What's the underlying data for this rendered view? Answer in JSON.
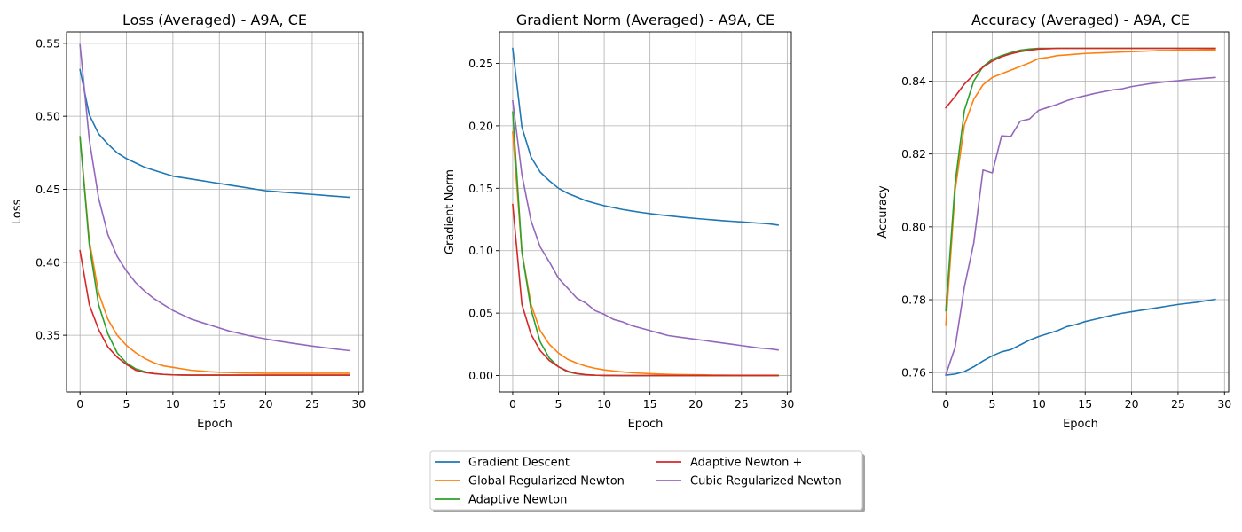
{
  "colors": {
    "Gradient Descent": "#1f77b4",
    "Global Regularized Newton": "#ff7f0e",
    "Adaptive Newton": "#2ca02c",
    "Adaptive Newton +": "#d62728",
    "Cubic Regularized Newton": "#9467bd"
  },
  "legend": {
    "placement": "bottom-center",
    "columns": 2,
    "entries": [
      "Gradient Descent",
      "Global Regularized Newton",
      "Adaptive Newton",
      "Adaptive Newton +",
      "Cubic Regularized Newton"
    ]
  },
  "chart_data": [
    {
      "id": "loss",
      "type": "line",
      "title": "Loss (Averaged) - A9A, CE",
      "xlabel": "Epoch",
      "ylabel": "Loss",
      "xlim": [
        -1.45,
        30.45
      ],
      "ylim": [
        0.3112,
        0.5578
      ],
      "xticks": [
        0,
        5,
        10,
        15,
        20,
        25,
        30
      ],
      "yticks": [
        0.35,
        0.4,
        0.45,
        0.5,
        0.55
      ],
      "ytick_labels": [
        "0.35",
        "0.40",
        "0.45",
        "0.50",
        "0.55"
      ],
      "grid": true,
      "x": [
        0,
        1,
        2,
        3,
        4,
        5,
        6,
        7,
        8,
        9,
        10,
        11,
        12,
        13,
        14,
        15,
        16,
        17,
        18,
        19,
        20,
        21,
        22,
        23,
        24,
        25,
        26,
        27,
        28,
        29
      ],
      "series": [
        {
          "name": "Gradient Descent",
          "values": [
            0.532,
            0.501,
            0.488,
            0.481,
            0.475,
            0.471,
            0.468,
            0.465,
            0.463,
            0.461,
            0.459,
            0.458,
            0.457,
            0.456,
            0.455,
            0.454,
            0.453,
            0.452,
            0.451,
            0.45,
            0.449,
            0.4485,
            0.448,
            0.4475,
            0.447,
            0.4465,
            0.446,
            0.4455,
            0.445,
            0.4445
          ]
        },
        {
          "name": "Global Regularized Newton",
          "values": [
            0.486,
            0.415,
            0.379,
            0.361,
            0.35,
            0.343,
            0.338,
            0.334,
            0.331,
            0.329,
            0.328,
            0.327,
            0.326,
            0.3255,
            0.325,
            0.3247,
            0.3245,
            0.3243,
            0.3242,
            0.3241,
            0.324,
            0.324,
            0.324,
            0.324,
            0.324,
            0.324,
            0.324,
            0.324,
            0.324,
            0.324
          ]
        },
        {
          "name": "Adaptive Newton",
          "values": [
            0.486,
            0.412,
            0.371,
            0.351,
            0.338,
            0.331,
            0.327,
            0.325,
            0.3238,
            0.3232,
            0.3229,
            0.3228,
            0.3227,
            0.3227,
            0.3227,
            0.3227,
            0.3227,
            0.3227,
            0.3227,
            0.3227,
            0.3227,
            0.3227,
            0.3227,
            0.3227,
            0.3227,
            0.3227,
            0.3227,
            0.3227,
            0.3227,
            0.3227
          ]
        },
        {
          "name": "Adaptive Newton +",
          "values": [
            0.408,
            0.371,
            0.354,
            0.342,
            0.335,
            0.33,
            0.326,
            0.3245,
            0.3237,
            0.3232,
            0.3229,
            0.3228,
            0.3227,
            0.3227,
            0.3227,
            0.3227,
            0.3227,
            0.3227,
            0.3227,
            0.3227,
            0.3227,
            0.3227,
            0.3227,
            0.3227,
            0.3227,
            0.3227,
            0.3227,
            0.3227,
            0.3227,
            0.3227
          ]
        },
        {
          "name": "Cubic Regularized Newton",
          "values": [
            0.549,
            0.484,
            0.444,
            0.419,
            0.404,
            0.394,
            0.386,
            0.38,
            0.375,
            0.371,
            0.367,
            0.364,
            0.361,
            0.359,
            0.357,
            0.355,
            0.353,
            0.3515,
            0.35,
            0.3487,
            0.3475,
            0.3464,
            0.3454,
            0.3444,
            0.3435,
            0.3426,
            0.3418,
            0.341,
            0.3402,
            0.3395
          ]
        }
      ]
    },
    {
      "id": "gradnorm",
      "type": "line",
      "title": "Gradient Norm (Averaged) - A9A, CE",
      "xlabel": "Epoch",
      "ylabel": "Gradient Norm",
      "xlim": [
        -1.45,
        30.45
      ],
      "ylim": [
        -0.0131,
        0.2752
      ],
      "xticks": [
        0,
        5,
        10,
        15,
        20,
        25,
        30
      ],
      "yticks": [
        0.0,
        0.05,
        0.1,
        0.15,
        0.2,
        0.25
      ],
      "ytick_labels": [
        "0.00",
        "0.05",
        "0.10",
        "0.15",
        "0.20",
        "0.25"
      ],
      "grid": true,
      "x": [
        0,
        1,
        2,
        3,
        4,
        5,
        6,
        7,
        8,
        9,
        10,
        11,
        12,
        13,
        14,
        15,
        16,
        17,
        18,
        19,
        20,
        21,
        22,
        23,
        24,
        25,
        26,
        27,
        28,
        29
      ],
      "series": [
        {
          "name": "Gradient Descent",
          "values": [
            0.262,
            0.199,
            0.175,
            0.163,
            0.156,
            0.15,
            0.146,
            0.143,
            0.14,
            0.138,
            0.136,
            0.1345,
            0.133,
            0.1318,
            0.1307,
            0.1297,
            0.1288,
            0.128,
            0.1272,
            0.1265,
            0.1258,
            0.1252,
            0.1246,
            0.124,
            0.1235,
            0.123,
            0.1225,
            0.122,
            0.1215,
            0.1205
          ]
        },
        {
          "name": "Global Regularized Newton",
          "values": [
            0.195,
            0.099,
            0.057,
            0.036,
            0.025,
            0.018,
            0.013,
            0.01,
            0.0075,
            0.0058,
            0.0045,
            0.0036,
            0.0029,
            0.0023,
            0.0019,
            0.0015,
            0.0012,
            0.001,
            0.0008,
            0.0007,
            0.0006,
            0.0005,
            0.0004,
            0.0004,
            0.0003,
            0.0003,
            0.0003,
            0.0003,
            0.0003,
            0.0003
          ]
        },
        {
          "name": "Adaptive Newton",
          "values": [
            0.211,
            0.099,
            0.053,
            0.027,
            0.014,
            0.007,
            0.003,
            0.0015,
            0.0007,
            0.0003,
            0.0001,
            0.0001,
            0,
            0,
            0,
            0,
            0,
            0,
            0,
            0,
            0,
            0,
            0,
            0,
            0,
            0,
            0,
            0,
            0,
            0
          ]
        },
        {
          "name": "Adaptive Newton +",
          "values": [
            0.137,
            0.057,
            0.033,
            0.02,
            0.012,
            0.007,
            0.0035,
            0.0016,
            0.0007,
            0.0003,
            0.0001,
            0.0001,
            0,
            0,
            0,
            0,
            0,
            0,
            0,
            0,
            0,
            0,
            0,
            0,
            0,
            0,
            0,
            0,
            0,
            0
          ]
        },
        {
          "name": "Cubic Regularized Newton",
          "values": [
            0.22,
            0.161,
            0.124,
            0.103,
            0.091,
            0.078,
            0.07,
            0.062,
            0.058,
            0.052,
            0.049,
            0.045,
            0.043,
            0.04,
            0.038,
            0.036,
            0.034,
            0.032,
            0.031,
            0.03,
            0.029,
            0.028,
            0.027,
            0.026,
            0.025,
            0.024,
            0.023,
            0.022,
            0.0215,
            0.0205
          ]
        }
      ]
    },
    {
      "id": "accuracy",
      "type": "line",
      "title": "Accuracy (Averaged) - A9A, CE",
      "xlabel": "Epoch",
      "ylabel": "Accuracy",
      "xlim": [
        -1.45,
        30.45
      ],
      "ylim": [
        0.7547,
        0.8535
      ],
      "xticks": [
        0,
        5,
        10,
        15,
        20,
        25,
        30
      ],
      "yticks": [
        0.76,
        0.78,
        0.8,
        0.82,
        0.84
      ],
      "ytick_labels": [
        "0.76",
        "0.78",
        "0.80",
        "0.82",
        "0.84"
      ],
      "grid": true,
      "x": [
        0,
        1,
        2,
        3,
        4,
        5,
        6,
        7,
        8,
        9,
        10,
        11,
        12,
        13,
        14,
        15,
        16,
        17,
        18,
        19,
        20,
        21,
        22,
        23,
        24,
        25,
        26,
        27,
        28,
        29
      ],
      "series": [
        {
          "name": "Gradient Descent",
          "values": [
            0.7593,
            0.7596,
            0.7603,
            0.7616,
            0.7632,
            0.7646,
            0.7657,
            0.7663,
            0.7676,
            0.7689,
            0.7699,
            0.7707,
            0.7715,
            0.7726,
            0.7732,
            0.774,
            0.7746,
            0.7752,
            0.7758,
            0.7763,
            0.7767,
            0.7771,
            0.7775,
            0.7779,
            0.7783,
            0.7787,
            0.779,
            0.7793,
            0.7797,
            0.7801
          ]
        },
        {
          "name": "Global Regularized Newton",
          "values": [
            0.773,
            0.81,
            0.828,
            0.835,
            0.839,
            0.841,
            0.842,
            0.843,
            0.844,
            0.845,
            0.8462,
            0.8465,
            0.847,
            0.8472,
            0.8474,
            0.8476,
            0.8477,
            0.8478,
            0.8479,
            0.848,
            0.8481,
            0.8482,
            0.8483,
            0.8484,
            0.8484,
            0.8485,
            0.8485,
            0.8485,
            0.8486,
            0.8486
          ]
        },
        {
          "name": "Adaptive Newton",
          "values": [
            0.777,
            0.812,
            0.832,
            0.84,
            0.844,
            0.846,
            0.847,
            0.8478,
            0.8485,
            0.8488,
            0.849,
            0.849,
            0.849,
            0.849,
            0.849,
            0.849,
            0.849,
            0.849,
            0.849,
            0.849,
            0.849,
            0.849,
            0.849,
            0.849,
            0.849,
            0.849,
            0.849,
            0.849,
            0.849,
            0.849
          ]
        },
        {
          "name": "Adaptive Newton +",
          "values": [
            0.8327,
            0.8358,
            0.8392,
            0.8418,
            0.8438,
            0.8455,
            0.8467,
            0.8475,
            0.8481,
            0.8485,
            0.8488,
            0.8489,
            0.849,
            0.849,
            0.849,
            0.849,
            0.849,
            0.849,
            0.849,
            0.849,
            0.849,
            0.849,
            0.849,
            0.849,
            0.849,
            0.849,
            0.849,
            0.849,
            0.849,
            0.849
          ]
        },
        {
          "name": "Cubic Regularized Newton",
          "values": [
            0.7594,
            0.767,
            0.7836,
            0.7955,
            0.8156,
            0.8148,
            0.825,
            0.8248,
            0.829,
            0.8296,
            0.832,
            0.8328,
            0.8336,
            0.8346,
            0.8354,
            0.836,
            0.8366,
            0.8371,
            0.8376,
            0.8379,
            0.8385,
            0.8389,
            0.8393,
            0.8396,
            0.8399,
            0.8401,
            0.8404,
            0.8406,
            0.8408,
            0.841
          ]
        }
      ]
    }
  ]
}
